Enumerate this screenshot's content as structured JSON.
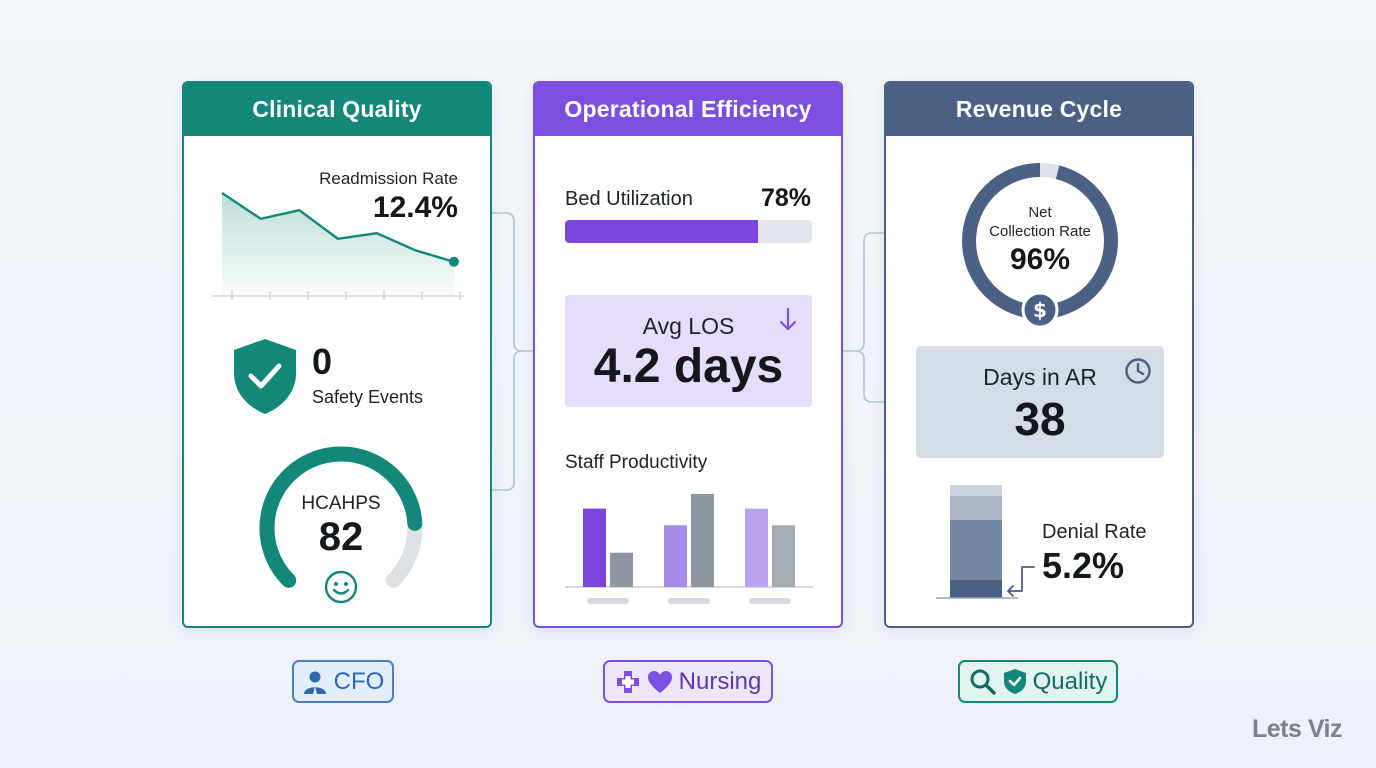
{
  "panels": {
    "clinical": {
      "title": "Clinical Quality",
      "readmission": {
        "label": "Readmission Rate",
        "value": "12.4%",
        "trend": [
          3.0,
          2.1,
          2.4,
          1.4,
          1.6,
          1.0,
          0.6
        ]
      },
      "safety": {
        "value": "0",
        "label": "Safety Events"
      },
      "hcahps": {
        "label": "HCAHPS",
        "value": "82",
        "gauge_fraction": 0.82
      }
    },
    "operational": {
      "title": "Operational Efficiency",
      "bed": {
        "label": "Bed Utilization",
        "value": "78%",
        "fraction": 0.78
      },
      "los": {
        "label": "Avg LOS",
        "value": "4.2 days"
      },
      "staff": {
        "label": "Staff Productivity",
        "groups": [
          {
            "bars": [
              {
                "value": 80,
                "color": "#7b45dd"
              },
              {
                "value": 35,
                "color": "#8f96a3"
              }
            ]
          },
          {
            "bars": [
              {
                "value": 63,
                "color": "#a78be8"
              },
              {
                "value": 95,
                "color": "#8f96a3"
              }
            ]
          },
          {
            "bars": [
              {
                "value": 80,
                "color": "#b9a2ee"
              },
              {
                "value": 63,
                "color": "#a4abb6"
              }
            ]
          }
        ]
      }
    },
    "revenue": {
      "title": "Revenue Cycle",
      "collection": {
        "label_line1": "Net",
        "label_line2": "Collection Rate",
        "value": "96%",
        "fraction": 0.96
      },
      "ar": {
        "label": "Days in AR",
        "value": "38"
      },
      "denial": {
        "label": "Denial Rate",
        "value": "5.2%"
      }
    }
  },
  "tags": {
    "cfo": "CFO",
    "nursing": "Nursing",
    "quality": "Quality"
  },
  "brand": "Lets Viz",
  "colors": {
    "teal": "#12877a",
    "purple": "#7c4fe0",
    "slate": "#4a6085"
  }
}
